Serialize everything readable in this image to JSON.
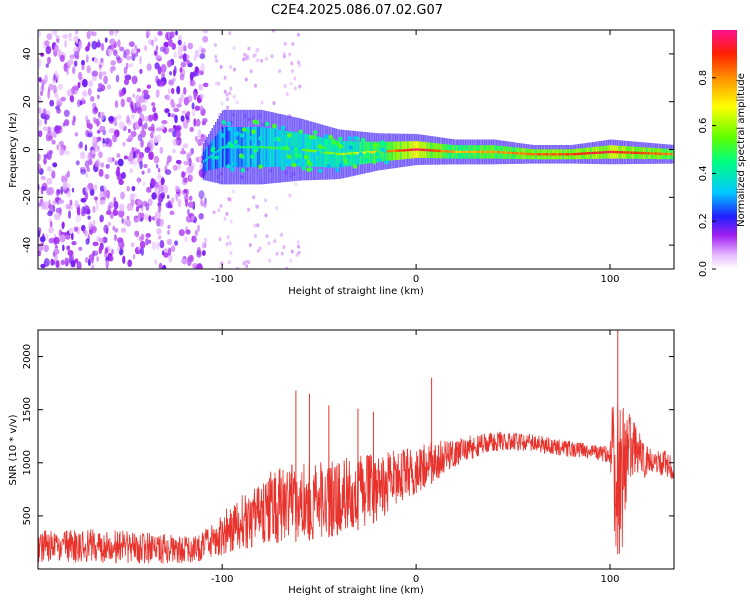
{
  "title": "C2E4.2025.086.07.02.G07",
  "chart_data": [
    {
      "type": "heatmap",
      "xlabel": "Height of straight line (km)",
      "ylabel": "Frequency (Hz)",
      "xlim": [
        -195,
        133
      ],
      "ylim": [
        -50,
        50
      ],
      "xticks": [
        -100,
        0,
        100
      ],
      "yticks": [
        -40,
        -20,
        0,
        20,
        40
      ],
      "colorbar": {
        "label": "Normalized spectral amplitude",
        "range": [
          0,
          1
        ],
        "ticks": [
          0.0,
          0.2,
          0.4,
          0.6,
          0.8
        ]
      },
      "ridge": [
        {
          "x": -110,
          "freq": -5,
          "width": 6,
          "amp": 0.3
        },
        {
          "x": -100,
          "freq": 1,
          "width": 12,
          "amp": 0.35
        },
        {
          "x": -80,
          "freq": 1,
          "width": 12,
          "amp": 0.45
        },
        {
          "x": -60,
          "freq": 0,
          "width": 10,
          "amp": 0.5
        },
        {
          "x": -40,
          "freq": -2,
          "width": 8,
          "amp": 0.55
        },
        {
          "x": -20,
          "freq": -1,
          "width": 6,
          "amp": 0.7
        },
        {
          "x": 0,
          "freq": 0,
          "width": 5,
          "amp": 0.95
        },
        {
          "x": 20,
          "freq": -1,
          "width": 4,
          "amp": 0.7
        },
        {
          "x": 40,
          "freq": -1,
          "width": 4,
          "amp": 0.75
        },
        {
          "x": 60,
          "freq": -2,
          "width": 3,
          "amp": 0.8
        },
        {
          "x": 80,
          "freq": -2,
          "width": 3,
          "amp": 0.85
        },
        {
          "x": 100,
          "freq": -1,
          "width": 4,
          "amp": 0.9
        },
        {
          "x": 133,
          "freq": -2,
          "width": 3,
          "amp": 0.75
        }
      ]
    },
    {
      "type": "line",
      "xlabel": "Height of straight line (km)",
      "ylabel": "SNR (10 * v/v)",
      "xlim": [
        -195,
        133
      ],
      "ylim": [
        0,
        2250
      ],
      "xticks": [
        -100,
        0,
        100
      ],
      "yticks": [
        500,
        1000,
        1500,
        2000
      ],
      "color": "#e8322c",
      "envelope": {
        "x": [
          -195,
          -170,
          -140,
          -115,
          -105,
          -95,
          -85,
          -75,
          -65,
          -55,
          -45,
          -35,
          -25,
          -15,
          -5,
          5,
          15,
          25,
          35,
          45,
          60,
          75,
          90,
          100,
          103,
          106,
          110,
          120,
          133
        ],
        "low": [
          60,
          60,
          50,
          50,
          90,
          150,
          200,
          240,
          250,
          270,
          300,
          330,
          400,
          500,
          650,
          760,
          900,
          1000,
          1080,
          1120,
          1100,
          1060,
          1040,
          990,
          150,
          120,
          800,
          880,
          840
        ],
        "high": [
          370,
          380,
          350,
          300,
          420,
          650,
          750,
          920,
          980,
          1000,
          1010,
          1050,
          1080,
          1100,
          1150,
          1180,
          1220,
          1260,
          1280,
          1300,
          1270,
          1220,
          1180,
          1150,
          2250,
          1650,
          1480,
          1140,
          1100
        ]
      },
      "spikes": [
        {
          "x": -62,
          "y": 1680
        },
        {
          "x": -55,
          "y": 1650
        },
        {
          "x": -45,
          "y": 1540
        },
        {
          "x": -30,
          "y": 1510
        },
        {
          "x": -22,
          "y": 1480
        },
        {
          "x": 8,
          "y": 1800
        },
        {
          "x": 104,
          "y": 2250
        }
      ]
    }
  ]
}
